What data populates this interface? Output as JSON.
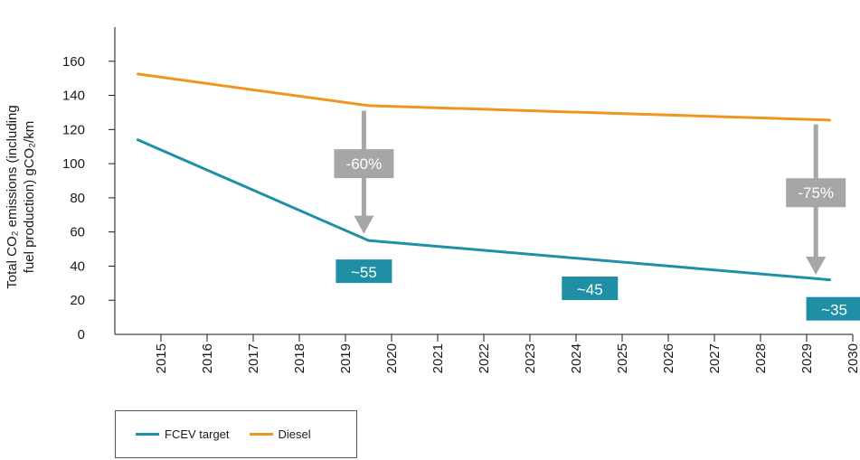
{
  "chart_data": {
    "type": "line",
    "title": "",
    "xlabel": "",
    "ylabel_lines": [
      "Total CO₂ emissions (including",
      "fuel production) gCO₂/km"
    ],
    "x": [
      2014.5,
      2019.5,
      2029.5
    ],
    "xticks": [
      "2015",
      "2016",
      "2017",
      "2018",
      "2019",
      "2020",
      "2021",
      "2022",
      "2023",
      "2024",
      "2025",
      "2026",
      "2027",
      "2028",
      "2029",
      "2030"
    ],
    "xlim": [
      2014,
      2030
    ],
    "ylim": [
      0,
      180
    ],
    "yticks": [
      0,
      20,
      40,
      60,
      80,
      100,
      120,
      140,
      160
    ],
    "grid": false,
    "legend_position": "bottom-left",
    "series": [
      {
        "name": "FCEV target",
        "color": "#1f8fa6",
        "values": [
          114,
          55,
          32
        ]
      },
      {
        "name": "Diesel",
        "color": "#f0951e",
        "values": [
          152.5,
          134,
          125.5
        ]
      }
    ],
    "annotations": [
      {
        "text": "-60%",
        "kind": "reduction",
        "x": 2019.4,
        "y_from": 131,
        "y_to": 60,
        "label_y": 100,
        "color": "#a6a6a6"
      },
      {
        "text": "-75%",
        "kind": "reduction",
        "x": 2029.2,
        "y_from": 123,
        "y_to": 36,
        "label_y": 83,
        "color": "#a6a6a6"
      },
      {
        "text": "~55",
        "kind": "value",
        "x": 2019.4,
        "y": 37,
        "color": "#1f8fa6"
      },
      {
        "text": "~45",
        "kind": "value",
        "x": 2024.3,
        "y": 27,
        "color": "#1f8fa6"
      },
      {
        "text": "~35",
        "kind": "value",
        "x": 2029.6,
        "y": 15,
        "color": "#1f8fa6"
      }
    ]
  }
}
